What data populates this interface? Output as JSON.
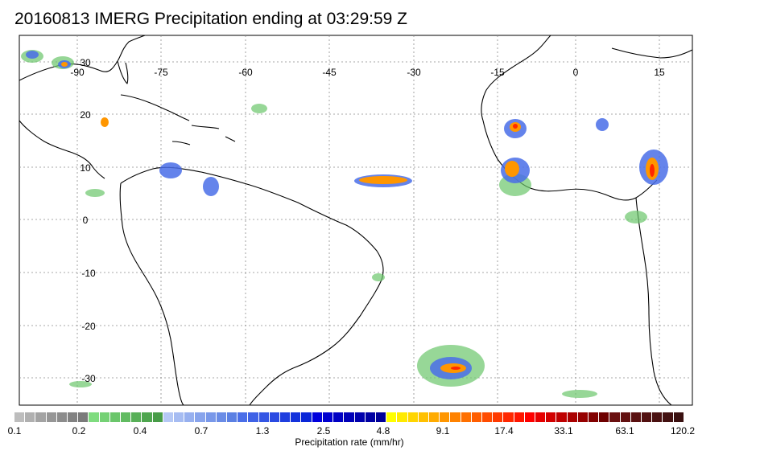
{
  "title": "20160813 IMERG Precipitation ending at 03:29:59 Z",
  "lon_labels": [
    "-90",
    "-75",
    "-60",
    "-45",
    "-30",
    "-15",
    "0",
    "15"
  ],
  "lat_labels": [
    "30",
    "20",
    "10",
    "0",
    "-10",
    "-20",
    "-30"
  ],
  "colorbar": {
    "labels": [
      "0.1",
      "0.2",
      "0.4",
      "0.7",
      "1.3",
      "2.5",
      "4.8",
      "9.1",
      "17.4",
      "33.1",
      "63.1",
      "120.2"
    ],
    "title": "Precipitation rate (mm/hr)",
    "colors": [
      "#bdbdbd",
      "#b0b0b0",
      "#a3a3a3",
      "#969696",
      "#8c8c8c",
      "#828282",
      "#7a7a7a",
      "#7fdc7f",
      "#75d175",
      "#6bc66b",
      "#61bb61",
      "#58b058",
      "#4fa64f",
      "#479c47",
      "#b5c8f5",
      "#a6bcf2",
      "#97b0ef",
      "#88a4ec",
      "#7998e9",
      "#6a8ce6",
      "#5b80e3",
      "#4a6ee8",
      "#3f62e6",
      "#3456e4",
      "#2a4ae2",
      "#1f3edf",
      "#1432dc",
      "#0a26d8",
      "#0000dd",
      "#0000d0",
      "#0000c4",
      "#0000b8",
      "#0000ad",
      "#0000a3",
      "#000099",
      "#ffff00",
      "#ffea00",
      "#ffd500",
      "#ffc000",
      "#ffab00",
      "#ff9600",
      "#ff8200",
      "#ff7000",
      "#ff5e00",
      "#ff4c00",
      "#ff3a00",
      "#ff2800",
      "#ff1600",
      "#ff0000",
      "#e60000",
      "#d20000",
      "#be0000",
      "#aa0000",
      "#960000",
      "#820000",
      "#6e0000",
      "#6a1010",
      "#621010",
      "#5a1010",
      "#521010",
      "#4a1010",
      "#421010",
      "#3a1010"
    ]
  }
}
